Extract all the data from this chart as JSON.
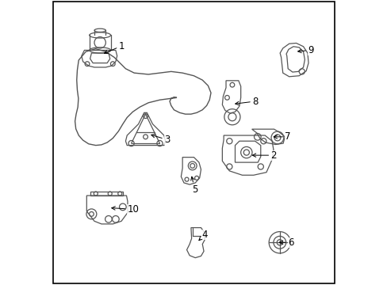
{
  "background_color": "#ffffff",
  "border_color": "#000000",
  "fig_width": 4.89,
  "fig_height": 3.6,
  "dpi": 100,
  "line_color": "#555555",
  "text_color": "#000000",
  "font_size": 8.5,
  "border_linewidth": 1.2,
  "parts_labels": [
    [
      1,
      0.175,
      0.81,
      0.235,
      0.84
    ],
    [
      2,
      0.695,
      0.455,
      0.77,
      0.455
    ],
    [
      3,
      0.34,
      0.53,
      0.395,
      0.51
    ],
    [
      4,
      0.51,
      0.148,
      0.528,
      0.175
    ],
    [
      5,
      0.49,
      0.39,
      0.493,
      0.335
    ],
    [
      6,
      0.79,
      0.148,
      0.83,
      0.148
    ],
    [
      7,
      0.77,
      0.52,
      0.82,
      0.52
    ],
    [
      8,
      0.635,
      0.635,
      0.705,
      0.645
    ],
    [
      9,
      0.855,
      0.82,
      0.9,
      0.825
    ],
    [
      10,
      0.2,
      0.27,
      0.265,
      0.265
    ]
  ]
}
